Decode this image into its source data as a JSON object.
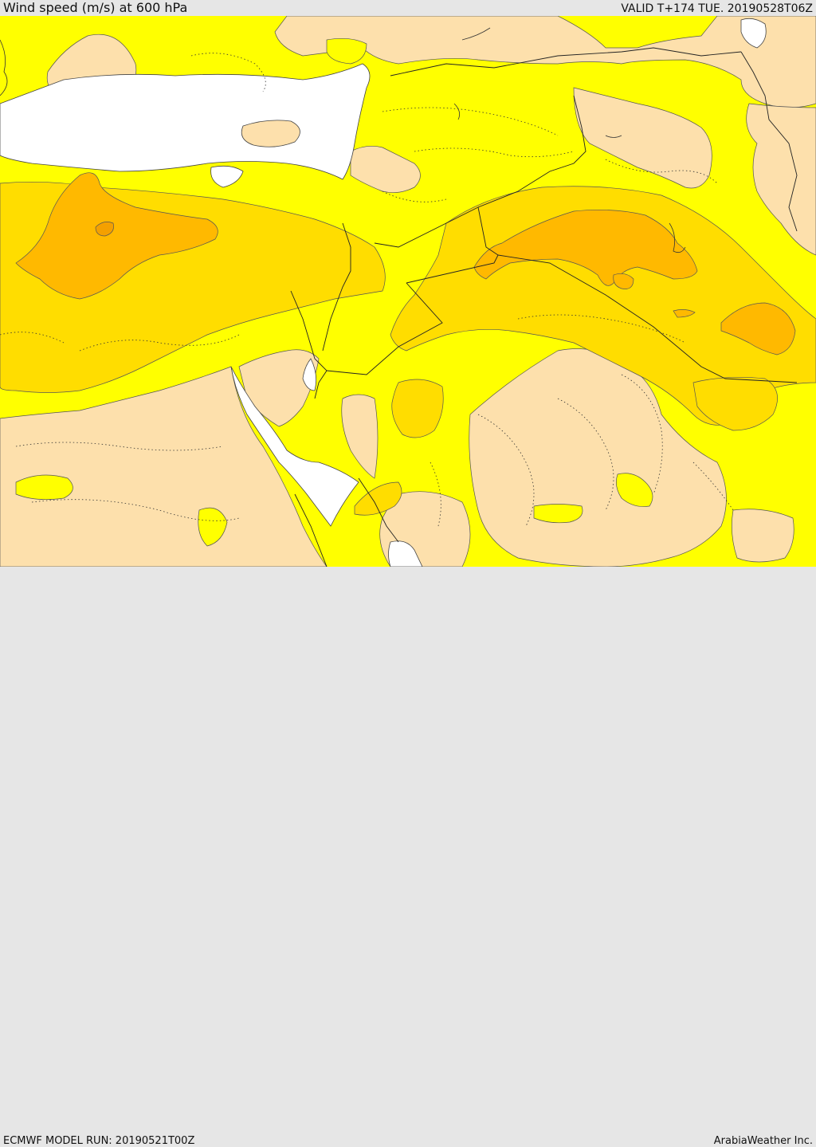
{
  "header": {
    "title": "Wind speed (m/s) at 600 hPa",
    "valid": "VALID T+174 TUE. 20190528T06Z"
  },
  "footer": {
    "model_run": "ECMWF MODEL RUN: 20190521T00Z",
    "credit": "ArabiaWeather Inc."
  },
  "colors": {
    "land_calm": "#fde0ac",
    "sea": "#ffffff",
    "wind_light": "#ffff00",
    "wind_moderate": "#ffdd00",
    "wind_strong": "#ffb900",
    "wind_stronger": "#f4a000",
    "outline": "#333333"
  },
  "icons": {
    "border_line": "solid-border-line",
    "admin_line": "dotted-admin-line"
  }
}
